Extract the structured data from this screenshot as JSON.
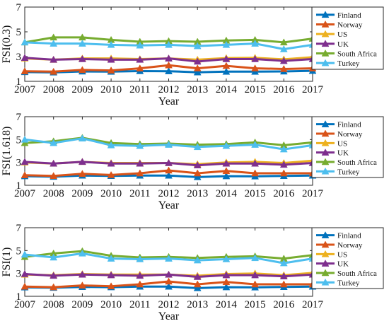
{
  "colors": {
    "Finland": "#0072BD",
    "Norway": "#D95319",
    "US": "#EDB120",
    "UK": "#7E2F8E",
    "South Africa": "#77AC30",
    "Turkey": "#4DBEEE"
  },
  "chart_data": [
    {
      "type": "line",
      "title": "",
      "xlabel": "Year",
      "ylabel": "FSI(0.3)",
      "x": [
        2007,
        2008,
        2009,
        2010,
        2011,
        2012,
        2013,
        2014,
        2015,
        2016,
        2017
      ],
      "xticks": [
        "2007",
        "2008",
        "2009",
        "2010",
        "2011",
        "2012",
        "2013",
        "2014",
        "2015",
        "2016",
        "2017"
      ],
      "yticks": [
        "1",
        "3",
        "5",
        "7"
      ],
      "ylim": [
        1,
        7
      ],
      "grid": false,
      "legend": "top-right",
      "series": [
        {
          "name": "Finland",
          "values": [
            1.75,
            1.72,
            1.8,
            1.78,
            1.83,
            1.82,
            1.73,
            1.78,
            1.78,
            1.8,
            1.85
          ]
        },
        {
          "name": "Norway",
          "values": [
            1.82,
            1.78,
            1.92,
            1.88,
            2.05,
            2.3,
            2.05,
            2.25,
            2.05,
            2.0,
            2.05
          ]
        },
        {
          "name": "US",
          "values": [
            2.85,
            2.75,
            2.85,
            2.85,
            2.8,
            2.85,
            2.75,
            2.88,
            2.9,
            2.78,
            2.95
          ]
        },
        {
          "name": "UK",
          "values": [
            2.9,
            2.75,
            2.8,
            2.75,
            2.75,
            2.85,
            2.6,
            2.8,
            2.8,
            2.65,
            2.8
          ]
        },
        {
          "name": "South Africa",
          "values": [
            4.15,
            4.55,
            4.55,
            4.35,
            4.2,
            4.25,
            4.2,
            4.3,
            4.35,
            4.15,
            4.45
          ]
        },
        {
          "name": "Turkey",
          "values": [
            4.15,
            4.05,
            4.05,
            3.95,
            3.9,
            3.95,
            3.85,
            3.95,
            4.05,
            3.6,
            3.95
          ]
        }
      ]
    },
    {
      "type": "line",
      "title": "",
      "xlabel": "Year",
      "ylabel": "FSI(1.618)",
      "x": [
        2007,
        2008,
        2009,
        2010,
        2011,
        2012,
        2013,
        2014,
        2015,
        2016,
        2017
      ],
      "xticks": [
        "2007",
        "2008",
        "2009",
        "2010",
        "2011",
        "2012",
        "2013",
        "2014",
        "2015",
        "2016",
        "2017"
      ],
      "yticks": [
        "1",
        "3",
        "5",
        "7"
      ],
      "ylim": [
        1,
        7
      ],
      "grid": false,
      "legend": "top-right",
      "series": [
        {
          "name": "Finland",
          "values": [
            1.8,
            1.75,
            1.85,
            1.82,
            1.85,
            1.85,
            1.72,
            1.8,
            1.78,
            1.82,
            1.85
          ]
        },
        {
          "name": "Norway",
          "values": [
            1.88,
            1.82,
            2.0,
            1.9,
            2.05,
            2.3,
            2.05,
            2.25,
            2.05,
            2.05,
            2.05
          ]
        },
        {
          "name": "US",
          "values": [
            3.0,
            2.9,
            3.05,
            2.95,
            2.95,
            2.95,
            2.85,
            3.0,
            3.05,
            2.95,
            3.15
          ]
        },
        {
          "name": "UK",
          "values": [
            3.05,
            2.9,
            3.05,
            2.9,
            2.9,
            2.95,
            2.75,
            2.9,
            2.9,
            2.8,
            2.95
          ]
        },
        {
          "name": "South Africa",
          "values": [
            4.7,
            4.85,
            5.15,
            4.7,
            4.6,
            4.65,
            4.55,
            4.6,
            4.75,
            4.5,
            4.75
          ]
        },
        {
          "name": "Turkey",
          "values": [
            5.0,
            4.7,
            5.1,
            4.5,
            4.45,
            4.55,
            4.35,
            4.45,
            4.55,
            4.15,
            4.5
          ]
        }
      ]
    },
    {
      "type": "line",
      "title": "",
      "xlabel": "Year",
      "ylabel": "FSI(1)",
      "x": [
        2007,
        2008,
        2009,
        2010,
        2011,
        2012,
        2013,
        2014,
        2015,
        2016,
        2017
      ],
      "xticks": [
        "2007",
        "2008",
        "2009",
        "2010",
        "2011",
        "2012",
        "2013",
        "2014",
        "2015",
        "2016",
        "2017"
      ],
      "yticks": [
        "1",
        "3",
        "5",
        "7"
      ],
      "ylim": [
        1,
        7
      ],
      "grid": false,
      "legend": "top-right",
      "series": [
        {
          "name": "Finland",
          "values": [
            1.78,
            1.75,
            1.82,
            1.8,
            1.85,
            1.85,
            1.72,
            1.8,
            1.78,
            1.82,
            1.85
          ]
        },
        {
          "name": "Norway",
          "values": [
            1.85,
            1.8,
            1.95,
            1.88,
            2.05,
            2.3,
            2.05,
            2.25,
            2.05,
            2.05,
            2.05
          ]
        },
        {
          "name": "US",
          "values": [
            2.9,
            2.85,
            2.95,
            2.9,
            2.9,
            2.9,
            2.8,
            2.95,
            3.0,
            2.85,
            3.05
          ]
        },
        {
          "name": "UK",
          "values": [
            2.95,
            2.8,
            2.9,
            2.85,
            2.8,
            2.9,
            2.7,
            2.85,
            2.85,
            2.75,
            2.9
          ]
        },
        {
          "name": "South Africa",
          "values": [
            4.45,
            4.75,
            4.95,
            4.55,
            4.4,
            4.45,
            4.35,
            4.45,
            4.5,
            4.3,
            4.6
          ]
        },
        {
          "name": "Turkey",
          "values": [
            4.65,
            4.4,
            4.75,
            4.3,
            4.25,
            4.3,
            4.15,
            4.25,
            4.35,
            3.9,
            4.3
          ]
        }
      ]
    }
  ]
}
